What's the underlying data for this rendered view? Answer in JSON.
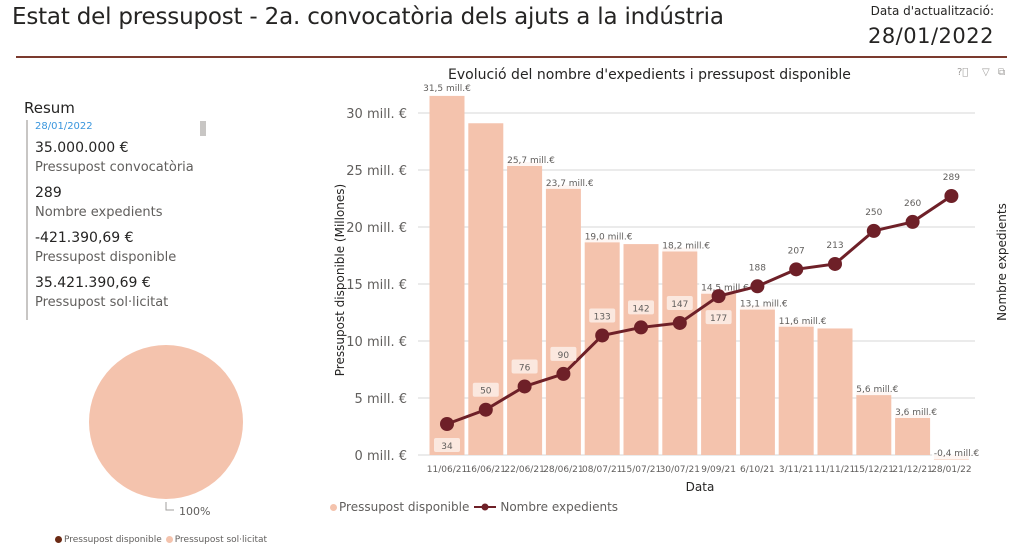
{
  "header": {
    "title": "Estat del pressupost - 2a. convocatòria dels ajuts a la indústria",
    "update_label": "Data d'actualització:",
    "update_date": "28/01/2022"
  },
  "resum": {
    "title": "Resum",
    "date": "28/01/2022",
    "kpis": [
      {
        "value": "35.000.000 €",
        "label": "Pressupost convocatòria"
      },
      {
        "value": "289",
        "label": "Nombre expedients"
      },
      {
        "value": "-421.390,69 €",
        "label": "Pressupost disponible"
      },
      {
        "value": "35.421.390,69 €",
        "label": "Pressupost sol·licitat"
      }
    ]
  },
  "colors": {
    "bar": "#f4c3ad",
    "line": "#6e2028",
    "pie_disponible": "#6b2a14",
    "pie_solicitat": "#f4c3ad",
    "accent_rule": "#7b3a2e",
    "date_blue": "#3a96dd"
  },
  "icons": {
    "help": "help-icon",
    "filter": "filter-icon",
    "focus": "focus-mode-icon"
  },
  "chart_data": [
    {
      "type": "bar",
      "title": "Evolució del nombre d'expedients i pressupost disponible",
      "xlabel": "Data",
      "ylabel": "Pressupost disponible (Millones)",
      "y2label": "Nombre expedients",
      "categories": [
        "11/06/21",
        "16/06/21",
        "22/06/21",
        "28/06/21",
        "08/07/21",
        "15/07/21",
        "30/07/21",
        "9/09/21",
        "6/10/21",
        "3/11/21",
        "11/11/21",
        "15/12/21",
        "21/12/21",
        "28/01/22"
      ],
      "ylim": [
        0,
        30
      ],
      "yticks": [
        0,
        5,
        10,
        15,
        20,
        25,
        30
      ],
      "ytick_labels": [
        "0 mill. €",
        "5 mill. €",
        "10 mill. €",
        "15 mill. €",
        "20 mill. €",
        "25 mill. €",
        "30 mill. €"
      ],
      "grid": true,
      "legend_position": "bottom-left",
      "series": [
        {
          "name": "Pressupost disponible",
          "type": "bar",
          "axis": "left",
          "values": [
            31.5,
            29.1,
            25.7,
            23.7,
            19.0,
            18.5,
            18.2,
            14.5,
            13.1,
            11.6,
            11.1,
            5.6,
            3.6,
            -0.4
          ],
          "labels": [
            "31,5 mill.€",
            "",
            "25,7 mill.€",
            "23,7 mill.€",
            "19,0 mill.€",
            "",
            "18,2 mill.€",
            "14,5 mill.€",
            "13,1 mill.€",
            "11,6 mill.€",
            "",
            "5,6 mill.€",
            "3,6 mill.€",
            "-0,4 mill.€"
          ]
        },
        {
          "name": "Nombre expedients",
          "type": "line",
          "axis": "right",
          "values": [
            34,
            50,
            76,
            90,
            133,
            142,
            147,
            177,
            188,
            207,
            213,
            250,
            260,
            289
          ],
          "labels": [
            "34",
            "50",
            "76",
            "90",
            "133",
            "142",
            "147",
            "177",
            "188",
            "207",
            "213",
            "250",
            "260",
            "289"
          ]
        }
      ]
    },
    {
      "type": "pie",
      "labels": [
        "Pressupost disponible",
        "Pressupost sol·licitat"
      ],
      "values": [
        0,
        100
      ],
      "data_labels": [
        "",
        "100%"
      ],
      "legend_position": "bottom"
    }
  ]
}
